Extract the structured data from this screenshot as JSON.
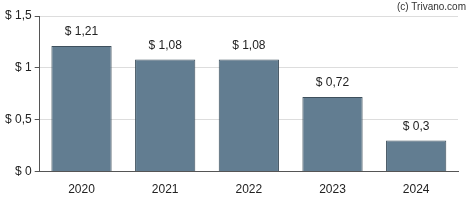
{
  "chart_data": {
    "type": "bar",
    "annotations": [
      "(c) Trivano.com"
    ],
    "categories": [
      "2020",
      "2021",
      "2022",
      "2023",
      "2024"
    ],
    "values": [
      1.21,
      1.08,
      1.08,
      0.72,
      0.3
    ],
    "value_labels": [
      "$ 1,21",
      "$ 1,08",
      "$ 1,08",
      "$ 0,72",
      "$ 0,3"
    ],
    "data_labels": true,
    "color": "#627d91",
    "ylim": [
      0,
      1.5
    ],
    "yticks": [
      {
        "value": 0,
        "label": "$ 0"
      },
      {
        "value": 0.5,
        "label": "$ 0,5"
      },
      {
        "value": 1,
        "label": "$ 1"
      },
      {
        "value": 1.5,
        "label": "$ 1,5"
      }
    ],
    "grid": true
  }
}
